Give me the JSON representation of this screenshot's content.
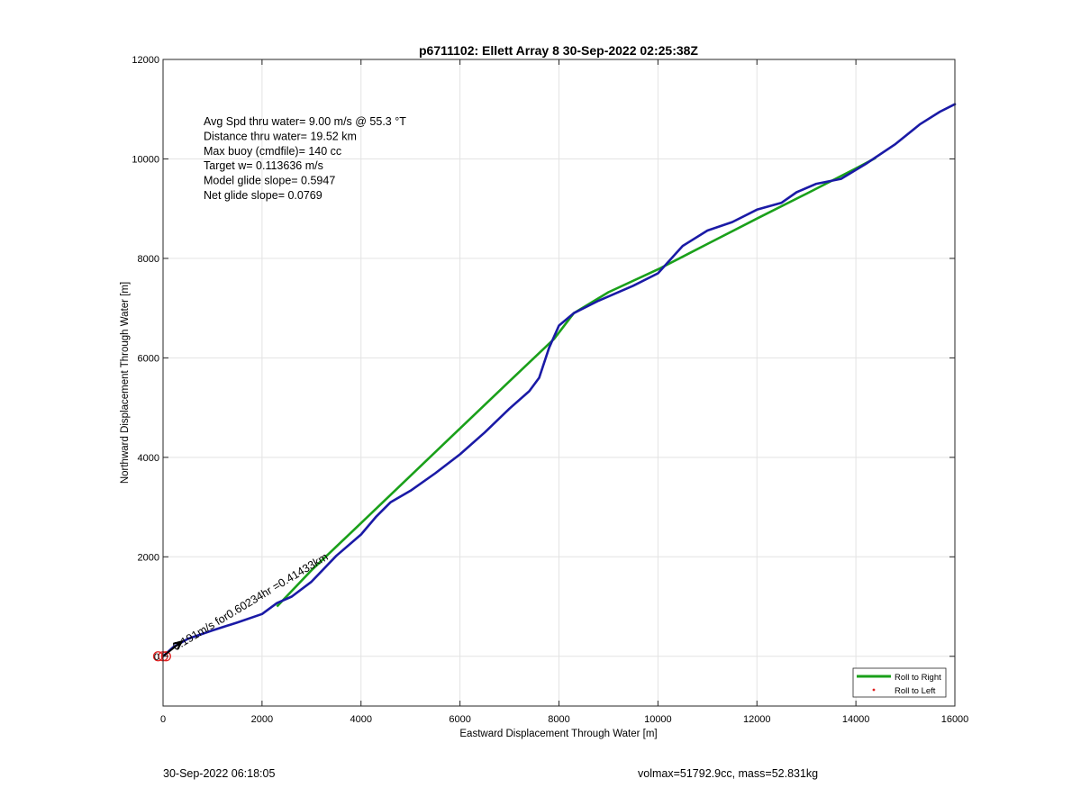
{
  "footer": {
    "timestamp": "30-Sep-2022 06:18:05",
    "vol_mass": "volmax=51792.9cc, mass=52.831kg"
  },
  "chart_data": {
    "type": "line",
    "title": "p6711102: Ellett Array 8 30-Sep-2022 02:25:38Z",
    "xlabel": "Eastward Displacement Through Water [m]",
    "ylabel": "Northward Displacement Through Water [m]",
    "xlim": [
      0,
      16000
    ],
    "ylim": [
      -1000,
      12000
    ],
    "xticks": [
      0,
      2000,
      4000,
      6000,
      8000,
      10000,
      12000,
      14000,
      16000
    ],
    "yticks": [
      0,
      2000,
      4000,
      6000,
      8000,
      10000,
      12000
    ],
    "grid": true,
    "legend_position": "bottom-right",
    "legend": [
      "Roll to Right",
      "Roll to Left"
    ],
    "colors": {
      "roll_right": "#1aa01a",
      "track": "#1a1aa6",
      "roll_left": "#e02020",
      "arrow": "#000000"
    },
    "annotations": [
      "Avg Spd thru water=  9.00 m/s @  55.3 °T",
      "Distance thru water= 19.52 km",
      "Max buoy (cmdfile)= 140 cc",
      "Target w= 0.113636 m/s",
      "Model glide slope= 0.5947",
      "Net glide slope= 0.0769"
    ],
    "arrow_label": "0.191m/s for0.60234hr =0.41433km",
    "series": [
      {
        "name": "Roll to Right",
        "x": [
          2300,
          3000,
          4000,
          5000,
          6000,
          7000,
          7900,
          8300,
          9000,
          10000,
          11000,
          12000,
          13000,
          14000,
          14400
        ],
        "y": [
          1000,
          1730,
          2680,
          3630,
          4580,
          5530,
          6380,
          6900,
          7320,
          7780,
          8290,
          8800,
          9300,
          9810,
          10020
        ]
      },
      {
        "name": "Track",
        "x": [
          0,
          200,
          500,
          1000,
          1500,
          2000,
          2300,
          2600,
          3000,
          3500,
          4000,
          4300,
          4600,
          5000,
          5500,
          6000,
          6500,
          7000,
          7400,
          7600,
          7800,
          8000,
          8300,
          8800,
          9500,
          10000,
          10500,
          11000,
          11500,
          12000,
          12500,
          12800,
          13200,
          13700,
          14200,
          14800,
          15300,
          15700,
          16000
        ],
        "y": [
          0,
          180,
          350,
          520,
          680,
          850,
          1070,
          1200,
          1500,
          2020,
          2450,
          2800,
          3100,
          3330,
          3680,
          4060,
          4500,
          4980,
          5330,
          5600,
          6200,
          6650,
          6900,
          7150,
          7450,
          7700,
          8250,
          8560,
          8730,
          8980,
          9120,
          9330,
          9500,
          9600,
          9900,
          10300,
          10700,
          10950,
          11100
        ]
      },
      {
        "name": "Roll to Left",
        "x": [
          -100,
          0,
          60
        ],
        "y": [
          0,
          0,
          0
        ]
      }
    ]
  }
}
